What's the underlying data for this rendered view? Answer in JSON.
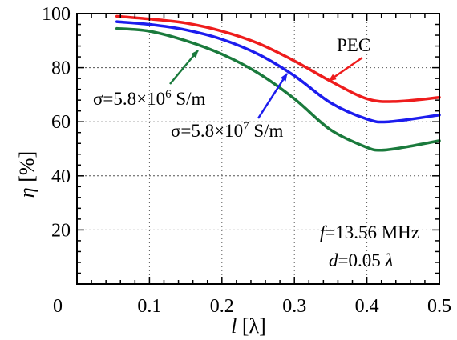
{
  "chart_data": {
    "type": "line",
    "xlim": [
      0,
      0.5
    ],
    "ylim": [
      0,
      100
    ],
    "x_ticks": [
      0,
      0.1,
      0.2,
      0.3,
      0.4,
      0.5
    ],
    "x_tick_labels": [
      "0",
      "0.1",
      "0.2",
      "0.3",
      "0.4",
      "0.5"
    ],
    "y_ticks": [
      20,
      40,
      60,
      80,
      100
    ],
    "y_tick_labels": [
      "20",
      "40",
      "60",
      "80",
      "100"
    ],
    "xlabel": {
      "var": "l",
      "unit": " [λ]"
    },
    "ylabel": {
      "var": "η",
      "unit": " [%]"
    },
    "grid": true,
    "series": [
      {
        "name": "PEC",
        "color": "#ee1c1c",
        "x": [
          0.055,
          0.1,
          0.15,
          0.2,
          0.25,
          0.3,
          0.35,
          0.4,
          0.44,
          0.5
        ],
        "y": [
          99,
          98,
          96.5,
          93.5,
          89,
          82.5,
          75,
          68.5,
          67.5,
          69
        ]
      },
      {
        "name": "σ=5.8×10^7 S/m",
        "color": "#1c1cee",
        "x": [
          0.055,
          0.1,
          0.15,
          0.2,
          0.25,
          0.3,
          0.35,
          0.4,
          0.43,
          0.5
        ],
        "y": [
          97,
          96,
          94,
          90.5,
          85,
          77,
          67,
          61,
          60,
          62.5
        ]
      },
      {
        "name": "σ=5.8×10^6 S/m",
        "color": "#1a7a3c",
        "x": [
          0.055,
          0.1,
          0.15,
          0.2,
          0.25,
          0.3,
          0.35,
          0.4,
          0.42,
          0.45,
          0.5
        ],
        "y": [
          94.5,
          93.5,
          90,
          85,
          78,
          68.5,
          57,
          50.5,
          49.5,
          50.5,
          53
        ]
      }
    ],
    "annotations": {
      "pec": {
        "text": "PEC",
        "color": "#ee1c1c"
      },
      "sigma7": {
        "text_base": "σ=5.8×10",
        "exp": "7",
        "unit": " S/m",
        "color": "#1c1cee"
      },
      "sigma6": {
        "text_base": "σ=5.8×10",
        "exp": "6",
        "unit": " S/m",
        "color": "#1a7a3c"
      },
      "freq": {
        "var": "f",
        "value": "=13.56 MHz"
      },
      "dist": {
        "var": "d",
        "value": "=0.05 ",
        "unit": "λ"
      }
    }
  }
}
